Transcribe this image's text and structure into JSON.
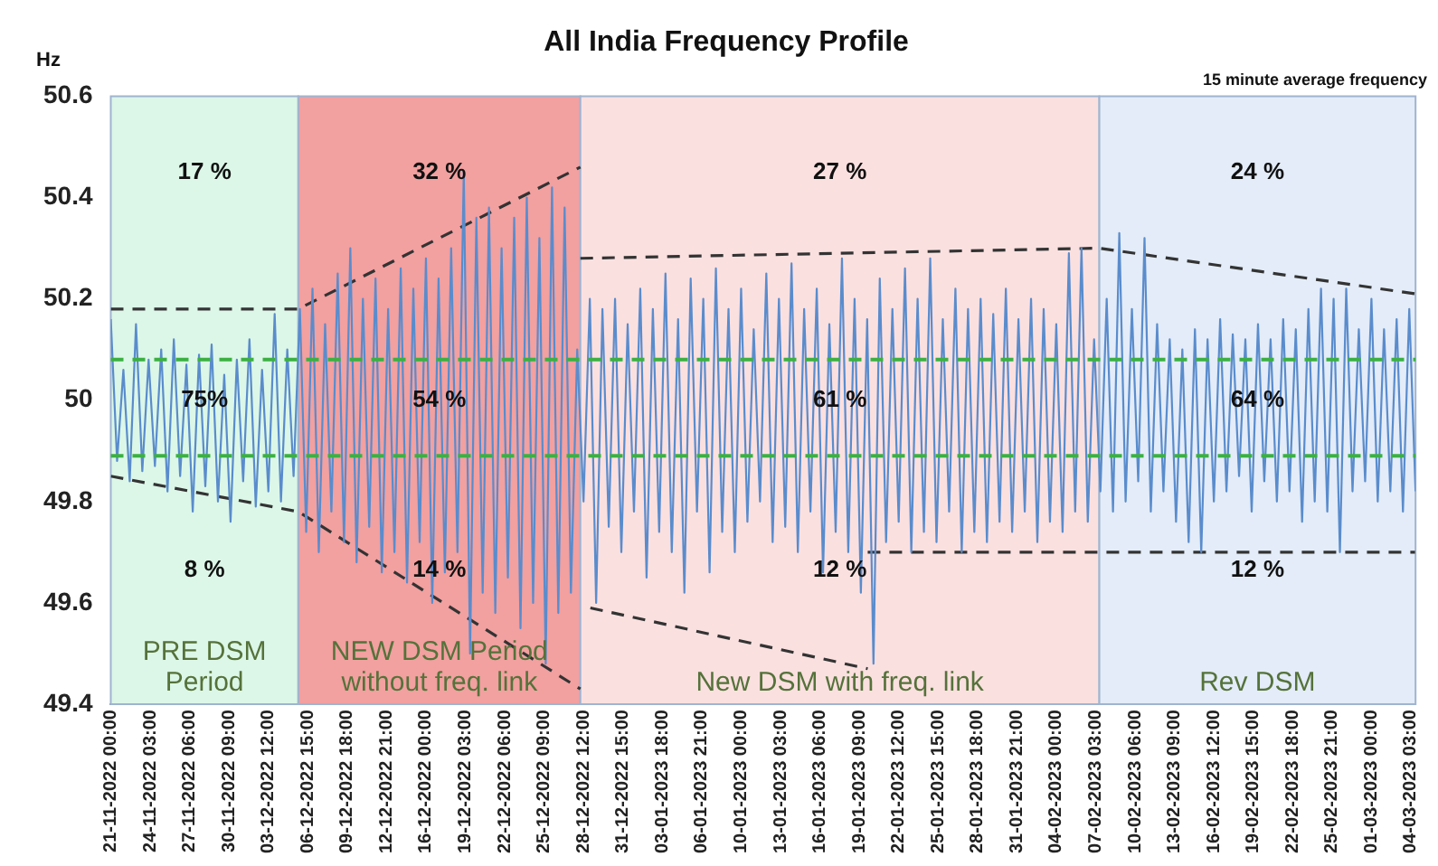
{
  "chart_data": {
    "type": "line",
    "title": "All India Frequency Profile",
    "ylabel": "Hz",
    "annotations": [
      "15 minute average frequency",
      "17 %",
      "75%",
      "8 %",
      "32 %",
      "54 %",
      "14 %",
      "27 %",
      "61 %",
      "12 %",
      "24 %",
      "64 %",
      "12 %"
    ],
    "x": [
      "2022-11-21T00:00",
      "2022-11-21T12:00",
      "2022-11-22T00:00",
      "2022-11-22T12:00",
      "2022-11-23T00:00",
      "2022-11-23T12:00",
      "2022-11-24T00:00",
      "2022-11-24T12:00",
      "2022-11-25T00:00",
      "2022-11-25T12:00",
      "2022-11-26T00:00",
      "2022-11-26T12:00",
      "2022-11-27T00:00",
      "2022-11-27T12:00",
      "2022-11-28T00:00",
      "2022-11-28T12:00",
      "2022-11-29T00:00",
      "2022-11-29T12:00",
      "2022-11-30T00:00",
      "2022-11-30T12:00",
      "2022-12-01T00:00",
      "2022-12-01T12:00",
      "2022-12-02T00:00",
      "2022-12-02T12:00",
      "2022-12-03T00:00",
      "2022-12-03T12:00",
      "2022-12-04T00:00",
      "2022-12-04T12:00",
      "2022-12-05T00:00",
      "2022-12-05T12:00",
      "2022-12-06T00:00",
      "2022-12-06T12:00",
      "2022-12-07T00:00",
      "2022-12-07T12:00",
      "2022-12-08T00:00",
      "2022-12-08T12:00",
      "2022-12-09T00:00",
      "2022-12-09T12:00",
      "2022-12-10T00:00",
      "2022-12-10T12:00",
      "2022-12-11T00:00",
      "2022-12-11T12:00",
      "2022-12-12T00:00",
      "2022-12-12T12:00",
      "2022-12-13T00:00",
      "2022-12-13T12:00",
      "2022-12-14T00:00",
      "2022-12-14T12:00",
      "2022-12-15T00:00",
      "2022-12-15T12:00",
      "2022-12-16T00:00",
      "2022-12-16T12:00",
      "2022-12-17T00:00",
      "2022-12-17T12:00",
      "2022-12-18T00:00",
      "2022-12-18T12:00",
      "2022-12-19T00:00",
      "2022-12-19T12:00",
      "2022-12-20T00:00",
      "2022-12-20T12:00",
      "2022-12-21T00:00",
      "2022-12-21T12:00",
      "2022-12-22T00:00",
      "2022-12-22T12:00",
      "2022-12-23T00:00",
      "2022-12-23T12:00",
      "2022-12-24T00:00",
      "2022-12-24T12:00",
      "2022-12-25T00:00",
      "2022-12-25T12:00",
      "2022-12-26T00:00",
      "2022-12-26T12:00",
      "2022-12-27T00:00",
      "2022-12-27T12:00",
      "2022-12-28T00:00",
      "2022-12-28T12:00",
      "2022-12-29T00:00",
      "2022-12-29T12:00",
      "2022-12-30T00:00",
      "2022-12-30T12:00",
      "2022-12-31T00:00",
      "2022-12-31T12:00",
      "2023-01-01T00:00",
      "2023-01-01T12:00",
      "2023-01-02T00:00",
      "2023-01-02T12:00",
      "2023-01-03T00:00",
      "2023-01-03T12:00",
      "2023-01-04T00:00",
      "2023-01-04T12:00",
      "2023-01-05T00:00",
      "2023-01-05T12:00",
      "2023-01-06T00:00",
      "2023-01-06T12:00",
      "2023-01-07T00:00",
      "2023-01-07T12:00",
      "2023-01-08T00:00",
      "2023-01-08T12:00",
      "2023-01-09T00:00",
      "2023-01-09T12:00",
      "2023-01-10T00:00",
      "2023-01-10T12:00",
      "2023-01-11T00:00",
      "2023-01-11T12:00",
      "2023-01-12T00:00",
      "2023-01-12T12:00",
      "2023-01-13T00:00",
      "2023-01-13T12:00",
      "2023-01-14T00:00",
      "2023-01-14T12:00",
      "2023-01-15T00:00",
      "2023-01-15T12:00",
      "2023-01-16T00:00",
      "2023-01-16T12:00",
      "2023-01-17T00:00",
      "2023-01-17T12:00",
      "2023-01-18T00:00",
      "2023-01-18T12:00",
      "2023-01-19T00:00",
      "2023-01-19T12:00",
      "2023-01-20T00:00",
      "2023-01-20T12:00",
      "2023-01-21T00:00",
      "2023-01-21T12:00",
      "2023-01-22T00:00",
      "2023-01-22T12:00",
      "2023-01-23T00:00",
      "2023-01-23T12:00",
      "2023-01-24T00:00",
      "2023-01-24T12:00",
      "2023-01-25T00:00",
      "2023-01-25T12:00",
      "2023-01-26T00:00",
      "2023-01-26T12:00",
      "2023-01-27T00:00",
      "2023-01-27T12:00",
      "2023-01-28T00:00",
      "2023-01-28T12:00",
      "2023-01-29T00:00",
      "2023-01-29T12:00",
      "2023-01-30T00:00",
      "2023-01-30T12:00",
      "2023-01-31T00:00",
      "2023-01-31T12:00",
      "2023-02-01T00:00",
      "2023-02-01T12:00",
      "2023-02-02T00:00",
      "2023-02-02T12:00",
      "2023-02-03T00:00",
      "2023-02-03T12:00",
      "2023-02-04T00:00",
      "2023-02-04T12:00",
      "2023-02-05T00:00",
      "2023-02-05T12:00",
      "2023-02-06T00:00",
      "2023-02-06T12:00",
      "2023-02-07T00:00",
      "2023-02-07T12:00",
      "2023-02-08T00:00",
      "2023-02-08T12:00",
      "2023-02-09T00:00",
      "2023-02-09T12:00",
      "2023-02-10T00:00",
      "2023-02-10T12:00",
      "2023-02-11T00:00",
      "2023-02-11T12:00",
      "2023-02-12T00:00",
      "2023-02-12T12:00",
      "2023-02-13T00:00",
      "2023-02-13T12:00",
      "2023-02-14T00:00",
      "2023-02-14T12:00",
      "2023-02-15T00:00",
      "2023-02-15T12:00",
      "2023-02-16T00:00",
      "2023-02-16T12:00",
      "2023-02-17T00:00",
      "2023-02-17T12:00",
      "2023-02-18T00:00",
      "2023-02-18T12:00",
      "2023-02-19T00:00",
      "2023-02-19T12:00",
      "2023-02-20T00:00",
      "2023-02-20T12:00",
      "2023-02-21T00:00",
      "2023-02-21T12:00",
      "2023-02-22T00:00",
      "2023-02-22T12:00",
      "2023-02-23T00:00",
      "2023-02-23T12:00",
      "2023-02-24T00:00",
      "2023-02-24T12:00",
      "2023-02-25T00:00",
      "2023-02-25T12:00",
      "2023-02-26T00:00",
      "2023-02-26T12:00",
      "2023-02-27T00:00",
      "2023-02-27T12:00",
      "2023-02-28T00:00",
      "2023-02-28T12:00",
      "2023-03-01T00:00",
      "2023-03-01T12:00",
      "2023-03-02T00:00",
      "2023-03-02T12:00",
      "2023-03-03T00:00",
      "2023-03-03T12:00",
      "2023-03-04T00:00",
      "2023-03-04T12:00"
    ],
    "series": [
      {
        "color": "#5a8ccc",
        "values": [
          50.16,
          49.88,
          50.06,
          49.84,
          50.15,
          49.86,
          50.08,
          49.87,
          50.1,
          49.82,
          50.12,
          49.85,
          50.07,
          49.78,
          50.09,
          49.83,
          50.11,
          49.8,
          50.05,
          49.76,
          50.08,
          49.84,
          50.12,
          49.79,
          50.06,
          49.82,
          50.17,
          49.8,
          50.1,
          49.85,
          50.18,
          49.74,
          50.22,
          49.7,
          50.15,
          49.78,
          50.25,
          49.72,
          50.3,
          49.68,
          50.2,
          49.75,
          50.24,
          49.66,
          50.18,
          49.7,
          50.26,
          49.64,
          50.22,
          49.72,
          50.28,
          49.6,
          50.24,
          49.66,
          50.3,
          49.7,
          50.45,
          49.5,
          50.36,
          49.62,
          50.38,
          49.58,
          50.3,
          49.65,
          50.36,
          49.55,
          50.4,
          49.6,
          50.32,
          49.48,
          50.42,
          49.58,
          50.38,
          49.62,
          50.1,
          49.8,
          50.2,
          49.6,
          50.18,
          49.75,
          50.2,
          49.7,
          50.15,
          49.78,
          50.22,
          49.65,
          50.18,
          49.74,
          50.25,
          49.7,
          50.16,
          49.62,
          50.24,
          49.78,
          50.2,
          49.66,
          50.26,
          49.74,
          50.18,
          49.7,
          50.22,
          49.76,
          50.14,
          49.8,
          50.25,
          49.72,
          50.2,
          49.75,
          50.27,
          49.7,
          50.18,
          49.78,
          50.22,
          49.66,
          50.15,
          49.74,
          50.28,
          49.7,
          50.2,
          49.62,
          50.16,
          49.48,
          50.24,
          49.72,
          50.18,
          49.76,
          50.26,
          49.7,
          50.2,
          49.74,
          50.28,
          49.72,
          50.16,
          49.78,
          50.22,
          49.7,
          50.18,
          49.74,
          50.2,
          49.72,
          50.17,
          49.76,
          50.22,
          49.74,
          50.16,
          49.78,
          50.2,
          49.72,
          50.18,
          49.76,
          50.15,
          49.74,
          50.29,
          49.78,
          50.3,
          49.76,
          50.12,
          49.82,
          50.2,
          49.78,
          50.33,
          49.8,
          50.18,
          49.84,
          50.32,
          49.78,
          50.15,
          49.82,
          50.12,
          49.76,
          50.1,
          49.72,
          50.14,
          49.7,
          50.12,
          49.8,
          50.16,
          49.82,
          50.13,
          49.85,
          50.12,
          49.78,
          50.15,
          49.84,
          50.12,
          49.8,
          50.16,
          49.82,
          50.14,
          49.76,
          50.18,
          49.8,
          50.22,
          49.78,
          50.2,
          49.7,
          50.22,
          49.82,
          50.14,
          49.84,
          50.2,
          49.8,
          50.14,
          49.82,
          50.16,
          49.78,
          50.18,
          49.82
        ]
      },
      {
        "type": "line",
        "color": "#333333",
        "line_style": "dashed",
        "x": [
          "2022-11-21T00:00",
          "2022-12-05T21:00",
          "2022-12-28T06:00"
        ],
        "values": [
          50.18,
          50.18,
          50.46
        ]
      },
      {
        "type": "line",
        "color": "#333333",
        "line_style": "dashed",
        "x": [
          "2022-12-28T06:00",
          "2023-02-07T10:00",
          "2023-03-04T11:00"
        ],
        "values": [
          50.28,
          50.3,
          50.21
        ]
      },
      {
        "type": "line",
        "color": "#333333",
        "line_style": "dashed",
        "x": [
          "2022-11-21T00:00",
          "2022-12-05T21:00",
          "2022-12-28T06:00"
        ],
        "values": [
          49.85,
          49.78,
          49.43
        ]
      },
      {
        "type": "line",
        "color": "#333333",
        "line_style": "dashed",
        "x": [
          "2022-12-29T01:00",
          "2023-01-20T01:00"
        ],
        "values": [
          49.59,
          49.47
        ]
      },
      {
        "type": "line",
        "color": "#333333",
        "line_style": "dashed",
        "x": [
          "2023-01-20T01:00",
          "2023-03-04T11:00"
        ],
        "values": [
          49.7,
          49.7
        ]
      }
    ],
    "bands": [
      {
        "axis": "x",
        "from": "2022-11-21T00:00",
        "to": "2022-12-05T21:00",
        "label": "PRE DSM Period",
        "color": "#dcf7e8"
      },
      {
        "axis": "x",
        "from": "2022-12-05T21:00",
        "to": "2022-12-28T06:00",
        "label": "NEW DSM Period without freq. link",
        "color": "#f2a0a0"
      },
      {
        "axis": "x",
        "from": "2022-12-28T06:00",
        "to": "2023-02-07T10:00",
        "label": "New DSM with freq. link",
        "color": "#fbe0e0"
      },
      {
        "axis": "x",
        "from": "2023-02-07T10:00",
        "to": "2023-03-04T12:00",
        "label": "Rev DSM",
        "color": "#e3ecf8"
      }
    ],
    "ref_lines": [
      {
        "axis": "y",
        "value": 50.08,
        "color": "#3cb043",
        "line_style": "dashed"
      },
      {
        "axis": "y",
        "value": 49.89,
        "color": "#3cb043",
        "line_style": "dashed"
      }
    ],
    "xlim": [
      "2022-11-21T00:00",
      "2023-03-04T12:00"
    ],
    "xticks": [
      {
        "value": "2022-11-21T00:00",
        "label": "21-11-2022 00:00"
      },
      {
        "value": "2022-11-24T03:00",
        "label": "24-11-2022 03:00"
      },
      {
        "value": "2022-11-27T06:00",
        "label": "27-11-2022 06:00"
      },
      {
        "value": "2022-11-30T09:00",
        "label": "30-11-2022 09:00"
      },
      {
        "value": "2022-12-03T12:00",
        "label": "03-12-2022 12:00"
      },
      {
        "value": "2022-12-06T15:00",
        "label": "06-12-2022 15:00"
      },
      {
        "value": "2022-12-09T18:00",
        "label": "09-12-2022 18:00"
      },
      {
        "value": "2022-12-12T21:00",
        "label": "12-12-2022 21:00"
      },
      {
        "value": "2022-12-16T00:00",
        "label": "16-12-2022 00:00"
      },
      {
        "value": "2022-12-19T03:00",
        "label": "19-12-2022 03:00"
      },
      {
        "value": "2022-12-22T06:00",
        "label": "22-12-2022 06:00"
      },
      {
        "value": "2022-12-25T09:00",
        "label": "25-12-2022 09:00"
      },
      {
        "value": "2022-12-28T12:00",
        "label": "28-12-2022 12:00"
      },
      {
        "value": "2022-12-31T15:00",
        "label": "31-12-2022 15:00"
      },
      {
        "value": "2023-01-03T18:00",
        "label": "03-01-2023 18:00"
      },
      {
        "value": "2023-01-06T21:00",
        "label": "06-01-2023 21:00"
      },
      {
        "value": "2023-01-10T00:00",
        "label": "10-01-2023 00:00"
      },
      {
        "value": "2023-01-13T03:00",
        "label": "13-01-2023 03:00"
      },
      {
        "value": "2023-01-16T06:00",
        "label": "16-01-2023 06:00"
      },
      {
        "value": "2023-01-19T09:00",
        "label": "19-01-2023 09:00"
      },
      {
        "value": "2023-01-22T12:00",
        "label": "22-01-2023 12:00"
      },
      {
        "value": "2023-01-25T15:00",
        "label": "25-01-2023 15:00"
      },
      {
        "value": "2023-01-28T18:00",
        "label": "28-01-2023 18:00"
      },
      {
        "value": "2023-01-31T21:00",
        "label": "31-01-2023 21:00"
      },
      {
        "value": "2023-02-04T00:00",
        "label": "04-02-2023 00:00"
      },
      {
        "value": "2023-02-07T03:00",
        "label": "07-02-2023 03:00"
      },
      {
        "value": "2023-02-10T06:00",
        "label": "10-02-2023 06:00"
      },
      {
        "value": "2023-02-13T09:00",
        "label": "13-02-2023 09:00"
      },
      {
        "value": "2023-02-16T12:00",
        "label": "16-02-2023 12:00"
      },
      {
        "value": "2023-02-19T15:00",
        "label": "19-02-2023 15:00"
      },
      {
        "value": "2023-02-22T18:00",
        "label": "22-02-2023 18:00"
      },
      {
        "value": "2023-02-25T21:00",
        "label": "25-02-2023 21:00"
      },
      {
        "value": "2023-03-01T00:00",
        "label": "01-03-2023 00:00"
      },
      {
        "value": "2023-03-04T03:00",
        "label": "04-03-2023 03:00"
      }
    ],
    "ylim": [
      49.4,
      50.6
    ],
    "yticks": [
      49.4,
      49.6,
      49.8,
      50,
      50.2,
      50.4,
      50.6
    ],
    "legend": false,
    "marker": "none",
    "line_style": "solid"
  }
}
